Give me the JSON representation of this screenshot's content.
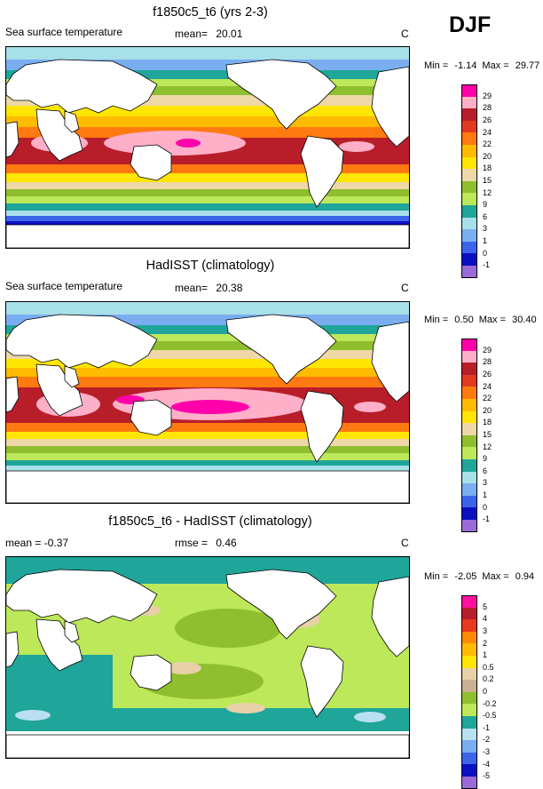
{
  "season": "DJF",
  "palettes": {
    "sst": [
      "#ff00aa",
      "#ffb0c8",
      "#b81e2a",
      "#e13a1f",
      "#ff7a10",
      "#ffbb00",
      "#ffe600",
      "#eed8a8",
      "#8fbf2e",
      "#bde85a",
      "#1fa59a",
      "#a8e0e8",
      "#7aaef0",
      "#3c64e8",
      "#0a10c0",
      "#9a6ad8"
    ],
    "diff": [
      "#ff10a0",
      "#b81e2a",
      "#e83a1e",
      "#ff8a0a",
      "#ffbb00",
      "#ffe600",
      "#e8d0a8",
      "#c8b090",
      "#8fbf2e",
      "#bde85a",
      "#1fa59a",
      "#b8e0f0",
      "#7aaef0",
      "#3c64e8",
      "#0a10c0",
      "#9a6ad8"
    ]
  },
  "panels": [
    {
      "id": "model",
      "title": "f1850c5_t6 (yrs 2-3)",
      "left_label": "Sea surface temperature",
      "mean_label": "mean=",
      "mean_value": "20.01",
      "units": "C",
      "min_label": "Min =",
      "min_value": "-1.14",
      "max_label": "Max =",
      "max_value": "29.77",
      "legend_labels": [
        "29",
        "28",
        "26",
        "24",
        "22",
        "20",
        "18",
        "15",
        "12",
        "9",
        "6",
        "3",
        "1",
        "0",
        "-1"
      ]
    },
    {
      "id": "obs",
      "title": "HadISST (climatology)",
      "left_label": "Sea surface temperature",
      "mean_label": "mean=",
      "mean_value": "20.38",
      "units": "C",
      "min_label": "Min =",
      "min_value": "0.50",
      "max_label": "Max =",
      "max_value": "30.40",
      "legend_labels": [
        "29",
        "28",
        "26",
        "24",
        "22",
        "20",
        "18",
        "15",
        "12",
        "9",
        "6",
        "3",
        "1",
        "0",
        "-1"
      ]
    },
    {
      "id": "diff",
      "title": "f1850c5_t6 - HadISST (climatology)",
      "left_label": "mean = -0.37",
      "mean_label": "rmse =",
      "mean_value": "0.46",
      "units": "C",
      "min_label": "Min =",
      "min_value": "-2.05",
      "max_label": "Max =",
      "max_value": "0.94",
      "legend_labels": [
        "5",
        "4",
        "3",
        "2",
        "1",
        "0.5",
        "0.2",
        "0",
        "-0.2",
        "-0.5",
        "-1",
        "-2",
        "-3",
        "-4",
        "-5"
      ]
    }
  ]
}
